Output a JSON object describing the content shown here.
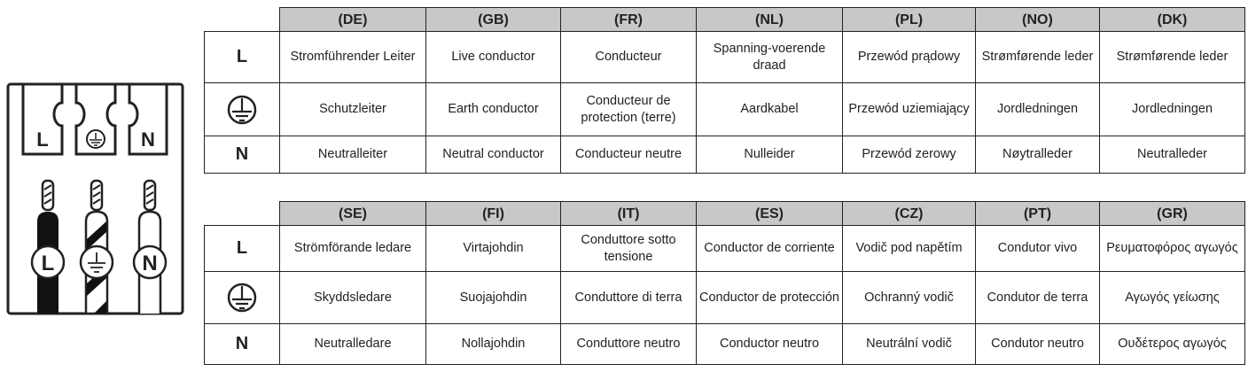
{
  "diagram": {
    "terminal_labels": [
      "L",
      "earth-symbol",
      "N"
    ],
    "wire_labels": [
      "L",
      "earth-symbol",
      "N"
    ]
  },
  "row_symbols": [
    "L",
    "earth-symbol",
    "N"
  ],
  "table1": {
    "headers": [
      "(DE)",
      "(GB)",
      "(FR)",
      "(NL)",
      "(PL)",
      "(NO)",
      "(DK)"
    ],
    "rows": [
      [
        "Stromführender Leiter",
        "Live conductor",
        "Conducteur",
        "Spanning-voerende draad",
        "Przewód prądowy",
        "Strømførende leder",
        "Strømførende leder"
      ],
      [
        "Schutzleiter",
        "Earth conductor",
        "Conducteur de protection (terre)",
        "Aardkabel",
        "Przewód uziemiający",
        "Jordledningen",
        "Jordledningen"
      ],
      [
        "Neutralleiter",
        "Neutral conductor",
        "Conducteur neutre",
        "Nulleider",
        "Przewód zerowy",
        "Nøytralleder",
        "Neutralleder"
      ]
    ]
  },
  "table2": {
    "headers": [
      "(SE)",
      "(FI)",
      "(IT)",
      "(ES)",
      "(CZ)",
      "(PT)",
      "(GR)"
    ],
    "rows": [
      [
        "Strömförande ledare",
        "Virtajohdin",
        "Conduttore sotto tensione",
        "Conductor de corriente",
        "Vodič pod napětím",
        "Condutor vivo",
        "Ρευματοφόρος αγωγός"
      ],
      [
        "Skyddsledare",
        "Suojajohdin",
        "Conduttore di terra",
        "Conductor de protección",
        "Ochranný vodič",
        "Condutor de terra",
        "Αγωγός γείωσης"
      ],
      [
        "Neutralledare",
        "Nollajohdin",
        "Conduttore neutro",
        "Conductor neutro",
        "Neutrální vodič",
        "Condutor neutro",
        "Ουδέτερος αγωγός"
      ]
    ]
  }
}
